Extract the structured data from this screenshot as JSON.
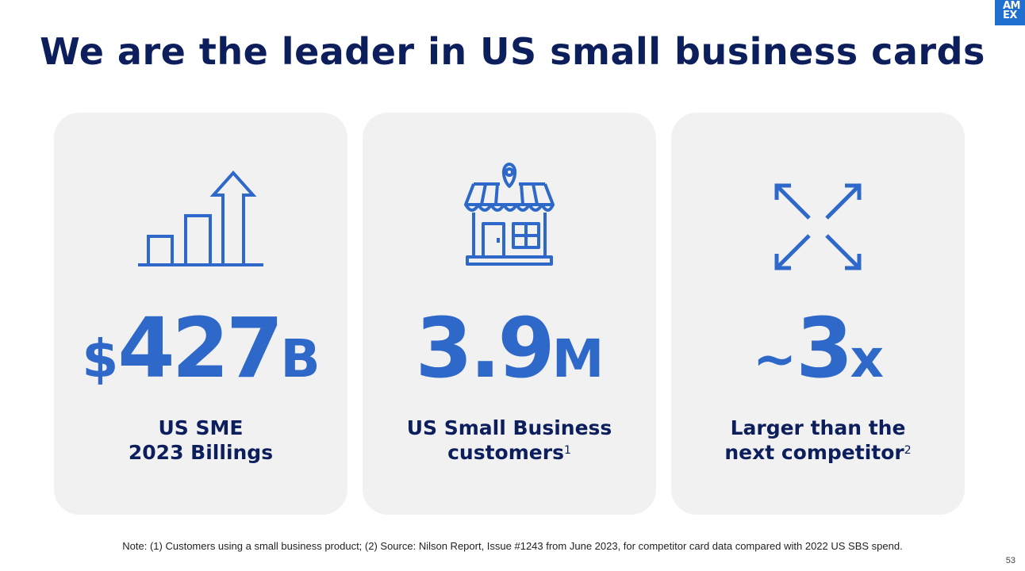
{
  "brand": {
    "logo_line1": "AM",
    "logo_line2": "EX",
    "color": "#1f6fd1"
  },
  "title": "We are the leader in US small business cards",
  "cards": [
    {
      "icon": "bar-chart-growth-icon",
      "stat_prefix": "$",
      "stat_value": "427",
      "stat_suffix": "B",
      "label_line1": "US SME",
      "label_line2": "2023 Billings",
      "footnote": ""
    },
    {
      "icon": "storefront-location-icon",
      "stat_prefix": "",
      "stat_value": "3.9",
      "stat_suffix": "M",
      "label_line1": "US Small Business",
      "label_line2": "customers",
      "footnote": "1"
    },
    {
      "icon": "expand-arrows-icon",
      "stat_prefix": "~",
      "stat_value": "3",
      "stat_suffix": "x",
      "label_line1": "Larger than the",
      "label_line2": "next competitor",
      "footnote": "2"
    }
  ],
  "note": "Note: (1) Customers using a small business product; (2) Source: Nilson Report, Issue #1243 from June 2023, for competitor card data compared with 2022 US SBS spend.",
  "page_number": "53",
  "colors": {
    "title": "#0c1e5b",
    "accent": "#2e68c9",
    "card_bg": "#f1f1f2"
  }
}
